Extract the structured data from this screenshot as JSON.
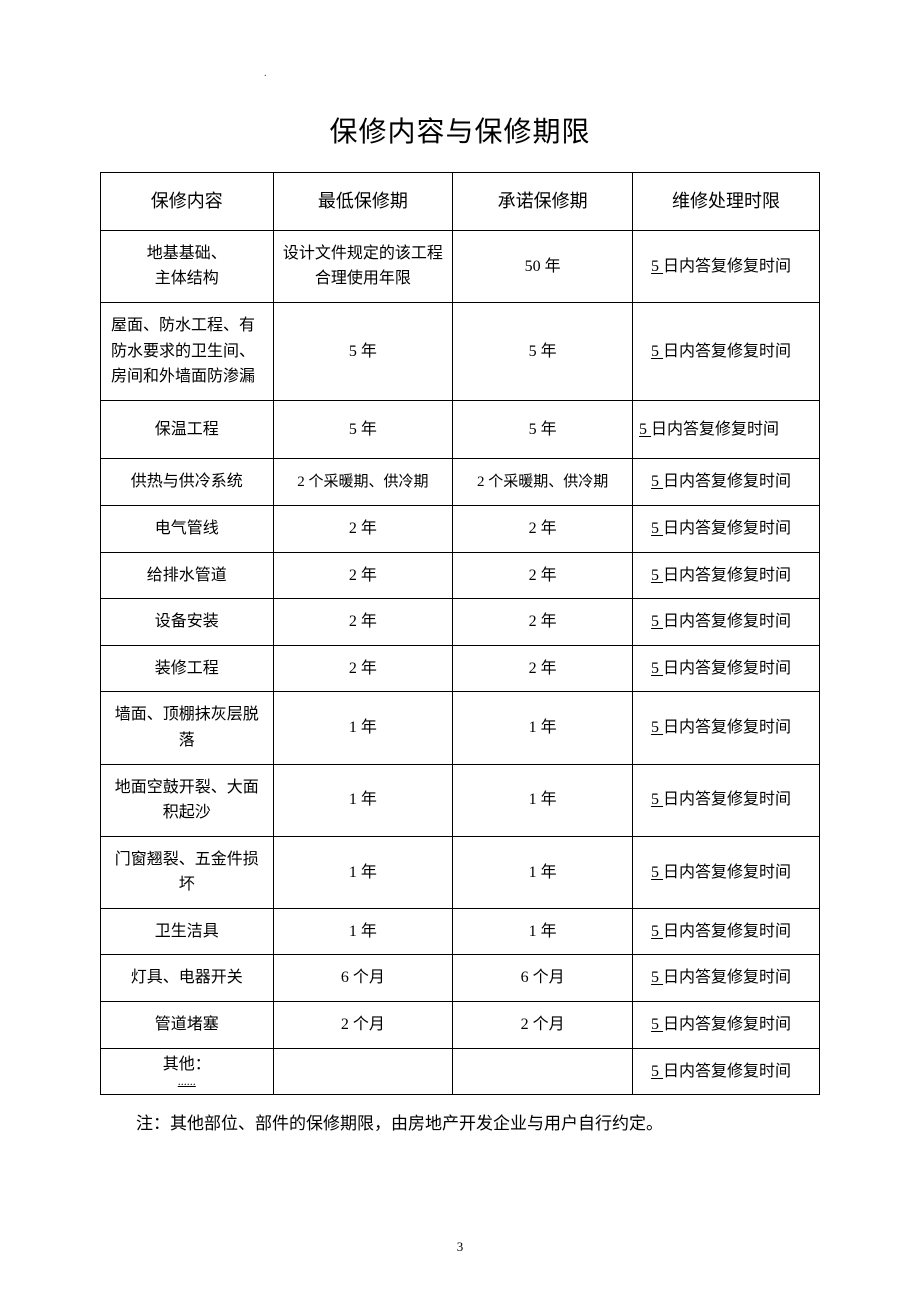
{
  "title": "保修内容与保修期限",
  "headers": {
    "c1": "保修内容",
    "c2": "最低保修期",
    "c3": "承诺保修期",
    "c4": "维修处理时限"
  },
  "repair_prefix": "5",
  "repair_suffix": "日内答复修复时间",
  "rows": [
    {
      "c1": "地基基础、\n主体结构",
      "c2": "设计文件规定的该工程合理使用年限",
      "c3": "50 年"
    },
    {
      "c1": "屋面、防水工程、有防水要求的卫生间、房间和外墙面防渗漏",
      "c2": "5 年",
      "c3": "5 年"
    },
    {
      "c1": "保温工程",
      "c2": "5 年",
      "c3": "5 年"
    },
    {
      "c1": "供热与供冷系统",
      "c2": "2 个采暖期、供冷期",
      "c3": "2 个采暖期、供冷期"
    },
    {
      "c1": "电气管线",
      "c2": "2 年",
      "c3": "2 年"
    },
    {
      "c1": "给排水管道",
      "c2": "2 年",
      "c3": "2 年"
    },
    {
      "c1": "设备安装",
      "c2": "2 年",
      "c3": "2 年"
    },
    {
      "c1": "装修工程",
      "c2": "2 年",
      "c3": "2 年"
    },
    {
      "c1": "墙面、顶棚抹灰层脱落",
      "c2": "1 年",
      "c3": "1 年"
    },
    {
      "c1": "地面空鼓开裂、大面积起沙",
      "c2": "1 年",
      "c3": "1 年"
    },
    {
      "c1": "门窗翘裂、五金件损坏",
      "c2": "1 年",
      "c3": "1 年"
    },
    {
      "c1": "卫生洁具",
      "c2": "1 年",
      "c3": "1 年"
    },
    {
      "c1": "灯具、电器开关",
      "c2": "6 个月",
      "c3": "6 个月"
    },
    {
      "c1": "管道堵塞",
      "c2": "2 个月",
      "c3": "2 个月"
    }
  ],
  "other_row": {
    "c1_label": "其他：",
    "c1_dots": "......",
    "c2": "",
    "c3": ""
  },
  "note": "注：其他部位、部件的保修期限，由房地产开发企业与用户自行约定。",
  "page_number": "3",
  "top_dot": "."
}
